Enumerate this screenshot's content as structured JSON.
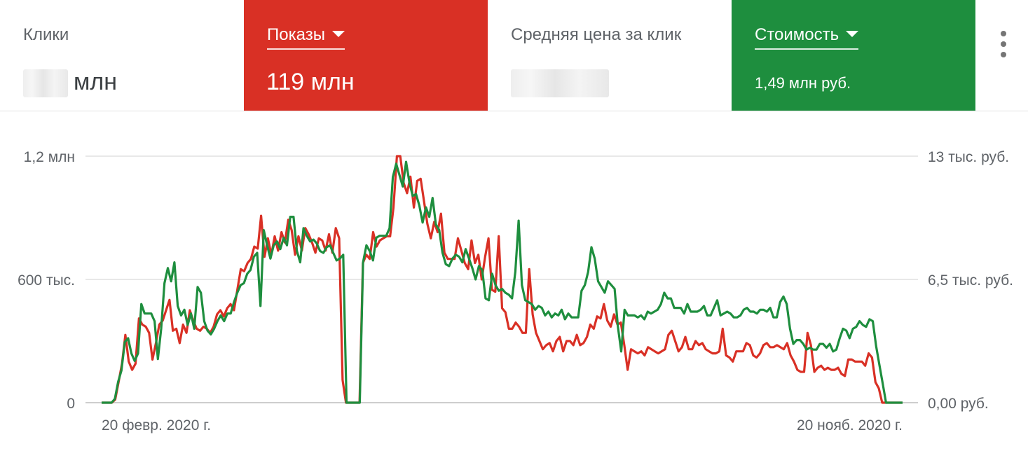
{
  "tiles": [
    {
      "label": "Клики",
      "value": "млн",
      "value_blurred": true,
      "selected": false
    },
    {
      "label": "Показы",
      "value": "119 млн",
      "selected": true,
      "color": "#d93025"
    },
    {
      "label": "Средняя цена за клик",
      "value": "",
      "value_blurred": true,
      "selected": false
    },
    {
      "label": "Стоимость",
      "value": "1,49 млн руб.",
      "selected": true,
      "color": "#1e8e3e"
    }
  ],
  "more_icon": "more-vert-icon",
  "chart_data": {
    "type": "line",
    "x_labels": [
      "20 февр. 2020 г.",
      "20 нояб. 2020 г."
    ],
    "y_left_ticks": [
      "0",
      "600 тыс.",
      "1,2 млн"
    ],
    "y_right_ticks": [
      "0,00 руб.",
      "6,5 тыс. руб.",
      "13 тыс. руб."
    ],
    "y_left_range": [
      0,
      1200000
    ],
    "y_right_range": [
      0,
      13000
    ],
    "grid": true,
    "series": [
      {
        "name": "Показы",
        "axis": "left",
        "color": "#d93025",
        "values": [
          0,
          0,
          0,
          0,
          15000,
          100000,
          190000,
          330000,
          200000,
          160000,
          190000,
          410000,
          380000,
          370000,
          340000,
          210000,
          290000,
          380000,
          400000,
          450000,
          500000,
          350000,
          360000,
          290000,
          380000,
          340000,
          450000,
          400000,
          360000,
          350000,
          370000,
          360000,
          340000,
          370000,
          430000,
          450000,
          420000,
          460000,
          480000,
          450000,
          550000,
          650000,
          640000,
          680000,
          700000,
          760000,
          750000,
          910000,
          710000,
          800000,
          720000,
          810000,
          740000,
          830000,
          780000,
          890000,
          840000,
          720000,
          810000,
          740000,
          850000,
          820000,
          780000,
          730000,
          800000,
          790000,
          740000,
          820000,
          730000,
          850000,
          800000,
          110000,
          0,
          0,
          0,
          0,
          0,
          680000,
          720000,
          700000,
          830000,
          760000,
          790000,
          800000,
          810000,
          810000,
          950000,
          1200000,
          1200000,
          1070000,
          1020000,
          1100000,
          950000,
          1080000,
          1090000,
          980000,
          870000,
          800000,
          880000,
          830000,
          920000,
          730000,
          700000,
          700000,
          700000,
          800000,
          740000,
          680000,
          650000,
          790000,
          680000,
          720000,
          600000,
          710000,
          800000,
          550000,
          540000,
          810000,
          460000,
          440000,
          360000,
          360000,
          390000,
          370000,
          340000,
          340000,
          650000,
          430000,
          340000,
          300000,
          260000,
          280000,
          290000,
          250000,
          300000,
          320000,
          250000,
          300000,
          300000,
          280000,
          330000,
          280000,
          290000,
          320000,
          380000,
          360000,
          420000,
          410000,
          480000,
          400000,
          370000,
          430000,
          380000,
          390000,
          280000,
          160000,
          260000,
          250000,
          240000,
          250000,
          230000,
          270000,
          260000,
          250000,
          240000,
          250000,
          260000,
          330000,
          350000,
          300000,
          250000,
          270000,
          320000,
          260000,
          260000,
          300000,
          280000,
          290000,
          260000,
          250000,
          240000,
          240000,
          250000,
          360000,
          230000,
          220000,
          200000,
          250000,
          250000,
          250000,
          290000,
          280000,
          230000,
          220000,
          240000,
          280000,
          290000,
          270000,
          270000,
          280000,
          270000,
          260000,
          290000,
          230000,
          200000,
          160000,
          150000,
          150000,
          340000,
          280000,
          150000,
          170000,
          180000,
          160000,
          170000,
          160000,
          160000,
          170000,
          140000,
          130000,
          210000,
          210000,
          200000,
          200000,
          200000,
          180000,
          240000,
          220000,
          100000,
          70000,
          0,
          0,
          0,
          0,
          0,
          0,
          0
        ]
      },
      {
        "name": "Стоимость",
        "axis": "right",
        "color": "#1e8e3e",
        "values": [
          0,
          0,
          0,
          0,
          200,
          1100,
          1700,
          3200,
          3400,
          2600,
          2200,
          2600,
          5200,
          4700,
          4700,
          4700,
          4300,
          2300,
          3900,
          6300,
          7100,
          6400,
          7400,
          5100,
          4600,
          4900,
          4100,
          4700,
          3900,
          6100,
          5800,
          4300,
          3800,
          3600,
          3900,
          4300,
          4600,
          4300,
          4700,
          4700,
          5300,
          5800,
          6200,
          6300,
          6800,
          7000,
          7700,
          7900,
          5100,
          9100,
          8300,
          7600,
          8300,
          8500,
          8100,
          8700,
          8300,
          9800,
          9800,
          8000,
          7400,
          9200,
          8800,
          8500,
          8600,
          8400,
          8000,
          7900,
          8200,
          8300,
          7900,
          7500,
          7600,
          7800,
          0,
          0,
          0,
          0,
          0,
          7400,
          8300,
          8000,
          7500,
          8700,
          8800,
          8800,
          8800,
          9200,
          11900,
          12600,
          12000,
          11400,
          12700,
          11600,
          10900,
          11000,
          10400,
          9500,
          10300,
          9800,
          10800,
          9400,
          9100,
          7900,
          7300,
          7200,
          7600,
          7800,
          7700,
          7400,
          8100,
          7600,
          7100,
          6500,
          7200,
          7000,
          5500,
          5400,
          6800,
          6200,
          5900,
          6000,
          5800,
          5700,
          5500,
          6900,
          9600,
          6200,
          5400,
          5300,
          5200,
          4900,
          5100,
          5000,
          4600,
          4800,
          4500,
          4700,
          4600,
          4900,
          4400,
          4700,
          4500,
          4500,
          4500,
          5900,
          6200,
          6900,
          8200,
          7600,
          6400,
          6100,
          5800,
          6400,
          6200,
          6000,
          4000,
          2700,
          4900,
          4600,
          4600,
          4600,
          4500,
          4600,
          4400,
          4800,
          4700,
          4800,
          4900,
          5200,
          5800,
          5500,
          5500,
          5000,
          5000,
          5000,
          4700,
          5200,
          4800,
          4800,
          4800,
          4900,
          5100,
          4600,
          4600,
          5000,
          5400,
          4600,
          4700,
          4800,
          4700,
          4500,
          4500,
          4600,
          4900,
          5000,
          4800,
          4800,
          4700,
          4900,
          4900,
          4800,
          5000,
          4500,
          4500,
          5300,
          5600,
          5200,
          3900,
          3100,
          3300,
          3300,
          3100,
          2800,
          2900,
          2800,
          2800,
          3100,
          3100,
          2900,
          3100,
          2700,
          2800,
          3400,
          3900,
          3800,
          3400,
          3900,
          4000,
          4300,
          4100,
          4000,
          4400,
          4300,
          3000,
          2000,
          1000,
          0,
          0,
          0,
          0,
          0,
          0
        ]
      }
    ]
  }
}
